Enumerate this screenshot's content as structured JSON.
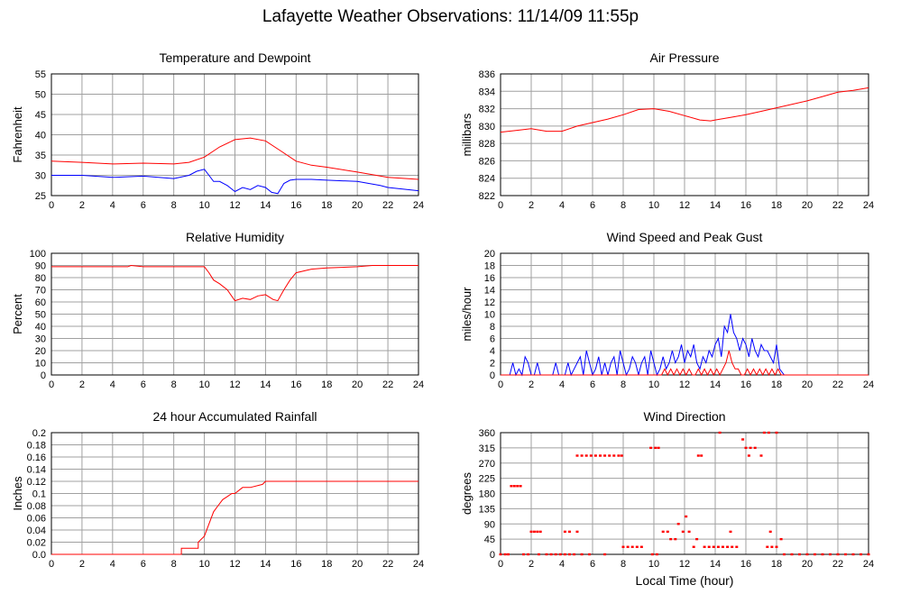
{
  "page_title": "Lafayette Weather Observations: 11/14/09 11:55p",
  "xlabel_bottom": "Local Time (hour)",
  "colors": {
    "red": "#ff0000",
    "blue": "#0000ff",
    "grid": "#a0a0a0"
  },
  "chart_data": [
    {
      "id": "temp",
      "type": "line",
      "title": "Temperature and Dewpoint",
      "ylabel": "Fahrenheit",
      "xlim": [
        0,
        24
      ],
      "ylim": [
        25,
        55
      ],
      "x_ticks": [
        "0",
        "2",
        "4",
        "6",
        "8",
        "10",
        "12",
        "14",
        "16",
        "18",
        "20",
        "22",
        "24"
      ],
      "y_ticks": [
        "25",
        "30",
        "35",
        "40",
        "45",
        "50",
        "55"
      ],
      "grid": true,
      "series": [
        {
          "color": "#ff0000",
          "x": [
            0,
            2,
            4,
            6,
            8,
            9,
            10,
            11,
            12,
            13,
            14,
            15,
            16,
            17,
            18,
            20,
            22,
            24
          ],
          "y": [
            33.5,
            33.2,
            32.8,
            33.0,
            32.8,
            33.2,
            34.5,
            37.0,
            38.8,
            39.2,
            38.5,
            36.0,
            33.5,
            32.5,
            32.0,
            30.8,
            29.5,
            29.0
          ]
        },
        {
          "color": "#0000ff",
          "x": [
            0,
            2,
            4,
            6,
            8,
            9,
            9.5,
            10,
            10.3,
            10.6,
            11,
            11.5,
            12,
            12.5,
            13,
            13.5,
            14,
            14.4,
            14.8,
            15.2,
            15.6,
            16,
            17,
            18,
            20,
            21.5,
            22,
            24
          ],
          "y": [
            30.0,
            30.0,
            29.5,
            29.8,
            29.2,
            30.0,
            31.0,
            31.5,
            30.0,
            28.5,
            28.5,
            27.5,
            26.0,
            27.0,
            26.5,
            27.5,
            27.0,
            25.8,
            25.5,
            28.0,
            28.8,
            29.0,
            29.0,
            28.8,
            28.5,
            27.5,
            27.0,
            26.2
          ]
        }
      ]
    },
    {
      "id": "pressure",
      "type": "line",
      "title": "Air Pressure",
      "ylabel": "millibars",
      "xlim": [
        0,
        24
      ],
      "ylim": [
        822,
        836
      ],
      "x_ticks": [
        "0",
        "2",
        "4",
        "6",
        "8",
        "10",
        "12",
        "14",
        "16",
        "18",
        "20",
        "22",
        "24"
      ],
      "y_ticks": [
        "822",
        "824",
        "826",
        "828",
        "830",
        "832",
        "834",
        "836"
      ],
      "grid": true,
      "series": [
        {
          "color": "#ff0000",
          "x": [
            0,
            1,
            2,
            3,
            4,
            5,
            6,
            7,
            8,
            9,
            10,
            11,
            12,
            13,
            13.7,
            14,
            15,
            16,
            17,
            18,
            19,
            20,
            21,
            22,
            23,
            24
          ],
          "y": [
            829.3,
            829.5,
            829.7,
            829.4,
            829.4,
            830.0,
            830.4,
            830.8,
            831.3,
            831.9,
            832.0,
            831.7,
            831.2,
            830.7,
            830.6,
            830.7,
            831.0,
            831.3,
            831.7,
            832.1,
            832.5,
            832.9,
            833.4,
            833.9,
            834.1,
            834.4
          ]
        }
      ]
    },
    {
      "id": "humidity",
      "type": "line",
      "title": "Relative Humidity",
      "ylabel": "Percent",
      "xlim": [
        0,
        24
      ],
      "ylim": [
        0,
        100
      ],
      "x_ticks": [
        "0",
        "2",
        "4",
        "6",
        "8",
        "10",
        "12",
        "14",
        "16",
        "18",
        "20",
        "22",
        "24"
      ],
      "y_ticks": [
        "0",
        "10",
        "20",
        "30",
        "40",
        "50",
        "60",
        "70",
        "80",
        "90",
        "100"
      ],
      "grid": true,
      "series": [
        {
          "color": "#ff0000",
          "x": [
            0,
            2,
            4,
            5,
            5.2,
            6,
            8,
            9,
            10,
            10.3,
            10.6,
            11,
            11.5,
            12,
            12.5,
            13,
            13.5,
            14,
            14.5,
            14.8,
            15.2,
            15.6,
            16,
            17,
            18,
            20,
            21,
            22,
            24
          ],
          "y": [
            89,
            89,
            89,
            89,
            90,
            89,
            89,
            89,
            89,
            84,
            78,
            75,
            70,
            61,
            63,
            62,
            65,
            66,
            62,
            61,
            70,
            78,
            84,
            87,
            88,
            89,
            90,
            90,
            90
          ]
        }
      ]
    },
    {
      "id": "wind",
      "type": "line",
      "title": "Wind Speed and Peak Gust",
      "ylabel": "miles/hour",
      "xlim": [
        0,
        24
      ],
      "ylim": [
        0,
        20
      ],
      "x_ticks": [
        "0",
        "2",
        "4",
        "6",
        "8",
        "10",
        "12",
        "14",
        "16",
        "18",
        "20",
        "22",
        "24"
      ],
      "y_ticks": [
        "0",
        "2",
        "4",
        "6",
        "8",
        "10",
        "12",
        "14",
        "16",
        "18",
        "20"
      ],
      "grid": true,
      "series": [
        {
          "color": "#0000ff",
          "x": [
            0,
            0.6,
            0.8,
            1.0,
            1.2,
            1.4,
            1.6,
            1.8,
            2.0,
            2.2,
            2.4,
            2.6,
            2.8,
            3.0,
            3.4,
            3.6,
            3.8,
            4.0,
            4.2,
            4.4,
            4.6,
            4.8,
            5.0,
            5.2,
            5.4,
            5.6,
            5.8,
            6.0,
            6.2,
            6.4,
            6.6,
            6.8,
            7.0,
            7.2,
            7.4,
            7.6,
            7.8,
            8.0,
            8.2,
            8.4,
            8.6,
            8.8,
            9.0,
            9.2,
            9.4,
            9.6,
            9.8,
            10.0,
            10.2,
            10.4,
            10.6,
            10.8,
            11.0,
            11.2,
            11.4,
            11.6,
            11.8,
            12.0,
            12.2,
            12.4,
            12.6,
            12.8,
            13.0,
            13.2,
            13.4,
            13.6,
            13.8,
            14.0,
            14.2,
            14.4,
            14.6,
            14.8,
            15.0,
            15.2,
            15.4,
            15.6,
            15.8,
            16.0,
            16.2,
            16.4,
            16.6,
            16.8,
            17.0,
            17.2,
            17.4,
            17.6,
            17.8,
            18.0,
            18.2,
            18.5,
            24
          ],
          "y": [
            0,
            0,
            2,
            0,
            1,
            0,
            3,
            2,
            0,
            0,
            2,
            0,
            0,
            0,
            0,
            2,
            0,
            0,
            0,
            2,
            0,
            1,
            2,
            3,
            0,
            4,
            2,
            0,
            1,
            3,
            0,
            2,
            0,
            2,
            3,
            0,
            4,
            2,
            0,
            1,
            3,
            2,
            0,
            2,
            3,
            0,
            4,
            2,
            0,
            1,
            3,
            1,
            2,
            4,
            2,
            3,
            5,
            2,
            4,
            3,
            5,
            2,
            1,
            3,
            2,
            4,
            3,
            5,
            6,
            3,
            8,
            7,
            10,
            7,
            6,
            4,
            6,
            5,
            3,
            6,
            4,
            3,
            5,
            4,
            4,
            3,
            2,
            5,
            1,
            0,
            0
          ]
        },
        {
          "color": "#ff0000",
          "x": [
            0,
            10.5,
            10.7,
            10.9,
            11.1,
            11.3,
            11.5,
            11.7,
            11.9,
            12.1,
            12.3,
            12.5,
            12.7,
            12.9,
            13.1,
            13.3,
            13.5,
            13.7,
            13.9,
            14.1,
            14.3,
            14.5,
            14.7,
            14.9,
            15.1,
            15.3,
            15.5,
            15.7,
            15.9,
            16.1,
            16.3,
            16.5,
            16.7,
            16.9,
            17.1,
            17.3,
            17.5,
            17.7,
            17.9,
            18.1,
            18.3,
            24
          ],
          "y": [
            0,
            0,
            1,
            0,
            1,
            0,
            1,
            0,
            1,
            0,
            1,
            0,
            0,
            1,
            0,
            1,
            0,
            1,
            0,
            1,
            0,
            1,
            2,
            4,
            2,
            1,
            1,
            0,
            0,
            1,
            0,
            1,
            0,
            1,
            0,
            1,
            0,
            1,
            0,
            1,
            0,
            0
          ]
        }
      ]
    },
    {
      "id": "rain",
      "type": "line",
      "title": "24 hour Accumulated Rainfall",
      "ylabel": "Inches",
      "xlim": [
        0,
        24
      ],
      "ylim": [
        0,
        0.2
      ],
      "x_ticks": [
        "0",
        "2",
        "4",
        "6",
        "8",
        "10",
        "12",
        "14",
        "16",
        "18",
        "20",
        "22",
        "24"
      ],
      "y_ticks": [
        "0.0",
        "0.02",
        "0.04",
        "0.06",
        "0.08",
        "0.1",
        "0.12",
        "0.14",
        "0.16",
        "0.18",
        "0.2"
      ],
      "grid": true,
      "series": [
        {
          "color": "#ff0000",
          "x": [
            0,
            8.5,
            8.5,
            9.6,
            9.6,
            10.0,
            10.3,
            10.6,
            10.9,
            11.2,
            11.5,
            11.8,
            12.0,
            12.5,
            13.0,
            13.8,
            14.0,
            24
          ],
          "y": [
            0,
            0,
            0.01,
            0.01,
            0.02,
            0.03,
            0.05,
            0.07,
            0.08,
            0.09,
            0.095,
            0.1,
            0.1,
            0.11,
            0.11,
            0.115,
            0.12,
            0.12
          ]
        }
      ]
    },
    {
      "id": "direction",
      "type": "scatter",
      "title": "Wind Direction",
      "ylabel": "degrees",
      "xlabel": "Local Time (hour)",
      "xlim": [
        0,
        24
      ],
      "ylim": [
        0,
        360
      ],
      "x_ticks": [
        "0",
        "2",
        "4",
        "6",
        "8",
        "10",
        "12",
        "14",
        "16",
        "18",
        "20",
        "22",
        "24"
      ],
      "y_ticks": [
        "0",
        "45",
        "90",
        "135",
        "180",
        "225",
        "270",
        "315",
        "360"
      ],
      "grid": true,
      "series": [
        {
          "color": "#ff0000",
          "points": [
            [
              0.7,
              202
            ],
            [
              0.9,
              202
            ],
            [
              1.1,
              202
            ],
            [
              1.3,
              202
            ],
            [
              2.0,
              67
            ],
            [
              2.2,
              67
            ],
            [
              2.4,
              67
            ],
            [
              2.6,
              67
            ],
            [
              4.2,
              67
            ],
            [
              4.5,
              67
            ],
            [
              5.0,
              67
            ],
            [
              5.0,
              292
            ],
            [
              5.3,
              292
            ],
            [
              5.6,
              292
            ],
            [
              5.9,
              292
            ],
            [
              6.2,
              292
            ],
            [
              6.5,
              292
            ],
            [
              6.8,
              292
            ],
            [
              7.1,
              292
            ],
            [
              7.4,
              292
            ],
            [
              7.7,
              292
            ],
            [
              7.9,
              292
            ],
            [
              8.0,
              22
            ],
            [
              8.3,
              22
            ],
            [
              8.6,
              22
            ],
            [
              8.9,
              22
            ],
            [
              9.2,
              22
            ],
            [
              9.8,
              315
            ],
            [
              10.1,
              315
            ],
            [
              10.3,
              315
            ],
            [
              10.6,
              67
            ],
            [
              10.9,
              67
            ],
            [
              11.1,
              45
            ],
            [
              11.4,
              45
            ],
            [
              11.6,
              90
            ],
            [
              11.9,
              67
            ],
            [
              12.1,
              112
            ],
            [
              12.3,
              67
            ],
            [
              12.6,
              22
            ],
            [
              12.8,
              45
            ],
            [
              12.9,
              292
            ],
            [
              13.1,
              292
            ],
            [
              13.3,
              22
            ],
            [
              13.6,
              22
            ],
            [
              13.9,
              22
            ],
            [
              14.2,
              22
            ],
            [
              14.5,
              22
            ],
            [
              14.8,
              22
            ],
            [
              15.1,
              22
            ],
            [
              15.4,
              22
            ],
            [
              14.3,
              360
            ],
            [
              15.0,
              67
            ],
            [
              15.8,
              340
            ],
            [
              16.0,
              315
            ],
            [
              16.3,
              315
            ],
            [
              16.6,
              315
            ],
            [
              17.0,
              292
            ],
            [
              16.2,
              292
            ],
            [
              17.2,
              360
            ],
            [
              17.5,
              360
            ],
            [
              18.0,
              360
            ],
            [
              17.4,
              22
            ],
            [
              17.7,
              22
            ],
            [
              18.0,
              22
            ],
            [
              17.6,
              67
            ],
            [
              18.3,
              45
            ],
            [
              0,
              0
            ],
            [
              0.3,
              0
            ],
            [
              0.5,
              0
            ],
            [
              1.5,
              0
            ],
            [
              1.8,
              0
            ],
            [
              2.5,
              0
            ],
            [
              3.0,
              0
            ],
            [
              3.3,
              0
            ],
            [
              3.6,
              0
            ],
            [
              3.9,
              0
            ],
            [
              4.2,
              0
            ],
            [
              4.5,
              0
            ],
            [
              4.8,
              0
            ],
            [
              5.3,
              0
            ],
            [
              5.8,
              0
            ],
            [
              6.8,
              0
            ],
            [
              9.9,
              0
            ],
            [
              10.2,
              0
            ],
            [
              18.5,
              0
            ],
            [
              19.0,
              0
            ],
            [
              19.5,
              0
            ],
            [
              20.0,
              0
            ],
            [
              20.5,
              0
            ],
            [
              21.0,
              0
            ],
            [
              21.5,
              0
            ],
            [
              22.0,
              0
            ],
            [
              22.5,
              0
            ],
            [
              23.0,
              0
            ],
            [
              23.5,
              0
            ],
            [
              24.0,
              0
            ]
          ]
        }
      ]
    }
  ]
}
